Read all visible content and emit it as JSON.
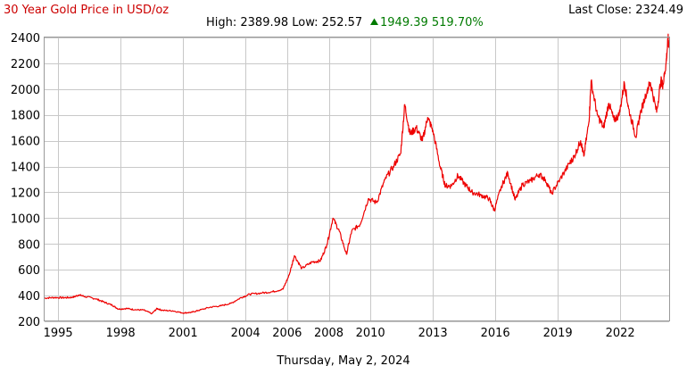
{
  "header": {
    "title": "30 Year Gold Price in USD/oz",
    "last_close_label": "Last Close: 2324.49",
    "high_low_label": "High: 2389.98 Low: 252.57",
    "change_label": "1949.39 519.70%",
    "up_color": "#007a00",
    "title_color": "#cc0000"
  },
  "footer": {
    "date": "Thursday, May 2, 2024"
  },
  "chart_data": {
    "type": "line",
    "title": "30 Year Gold Price in USD/oz",
    "xlabel": "",
    "ylabel": "",
    "xlim": [
      1994.35,
      2024.35
    ],
    "ylim": [
      200,
      2400
    ],
    "yticks": [
      200,
      400,
      600,
      800,
      1000,
      1200,
      1400,
      1600,
      1800,
      2000,
      2200,
      2400
    ],
    "xticks": [
      {
        "value": 1995,
        "label": "1995"
      },
      {
        "value": 1998,
        "label": "1998"
      },
      {
        "value": 2001,
        "label": "2001"
      },
      {
        "value": 2004,
        "label": "2004"
      },
      {
        "value": 2006,
        "label": "2006"
      },
      {
        "value": 2008,
        "label": "2008"
      },
      {
        "value": 2010,
        "label": "2010"
      },
      {
        "value": 2013,
        "label": "2013"
      },
      {
        "value": 2016,
        "label": "2016"
      },
      {
        "value": 2019,
        "label": "2019"
      },
      {
        "value": 2022,
        "label": "2022"
      }
    ],
    "grid": true,
    "line_color": "#ee0000",
    "series": [
      {
        "name": "",
        "points": [
          [
            1994.35,
            380
          ],
          [
            1994.8,
            385
          ],
          [
            1995.3,
            383
          ],
          [
            1995.7,
            386
          ],
          [
            1996.0,
            405
          ],
          [
            1996.3,
            392
          ],
          [
            1996.8,
            375
          ],
          [
            1997.2,
            350
          ],
          [
            1997.6,
            325
          ],
          [
            1997.9,
            295
          ],
          [
            1998.3,
            300
          ],
          [
            1998.7,
            290
          ],
          [
            1999.1,
            288
          ],
          [
            1999.5,
            260
          ],
          [
            1999.75,
            300
          ],
          [
            2000.0,
            285
          ],
          [
            2000.5,
            282
          ],
          [
            2001.0,
            265
          ],
          [
            2001.4,
            270
          ],
          [
            2001.75,
            285
          ],
          [
            2002.3,
            310
          ],
          [
            2002.8,
            320
          ],
          [
            2003.3,
            340
          ],
          [
            2003.8,
            385
          ],
          [
            2004.2,
            410
          ],
          [
            2004.8,
            420
          ],
          [
            2005.3,
            430
          ],
          [
            2005.8,
            450
          ],
          [
            2006.1,
            560
          ],
          [
            2006.35,
            710
          ],
          [
            2006.7,
            610
          ],
          [
            2007.2,
            660
          ],
          [
            2007.6,
            670
          ],
          [
            2007.9,
            790
          ],
          [
            2008.2,
            1000
          ],
          [
            2008.5,
            900
          ],
          [
            2008.85,
            720
          ],
          [
            2009.1,
            900
          ],
          [
            2009.5,
            950
          ],
          [
            2009.9,
            1150
          ],
          [
            2010.3,
            1120
          ],
          [
            2010.7,
            1300
          ],
          [
            2011.1,
            1400
          ],
          [
            2011.45,
            1500
          ],
          [
            2011.65,
            1880
          ],
          [
            2011.9,
            1650
          ],
          [
            2012.2,
            1700
          ],
          [
            2012.5,
            1600
          ],
          [
            2012.75,
            1780
          ],
          [
            2013.0,
            1680
          ],
          [
            2013.35,
            1400
          ],
          [
            2013.6,
            1250
          ],
          [
            2013.9,
            1250
          ],
          [
            2014.2,
            1330
          ],
          [
            2014.6,
            1250
          ],
          [
            2014.9,
            1200
          ],
          [
            2015.3,
            1180
          ],
          [
            2015.7,
            1150
          ],
          [
            2015.95,
            1060
          ],
          [
            2016.3,
            1250
          ],
          [
            2016.6,
            1350
          ],
          [
            2016.95,
            1140
          ],
          [
            2017.3,
            1260
          ],
          [
            2017.7,
            1290
          ],
          [
            2018.1,
            1340
          ],
          [
            2018.4,
            1300
          ],
          [
            2018.7,
            1190
          ],
          [
            2019.1,
            1300
          ],
          [
            2019.55,
            1420
          ],
          [
            2019.8,
            1480
          ],
          [
            2020.1,
            1600
          ],
          [
            2020.25,
            1480
          ],
          [
            2020.5,
            1750
          ],
          [
            2020.6,
            2060
          ],
          [
            2020.9,
            1800
          ],
          [
            2021.2,
            1700
          ],
          [
            2021.45,
            1890
          ],
          [
            2021.7,
            1760
          ],
          [
            2021.95,
            1800
          ],
          [
            2022.2,
            2050
          ],
          [
            2022.4,
            1850
          ],
          [
            2022.75,
            1630
          ],
          [
            2022.95,
            1800
          ],
          [
            2023.3,
            2000
          ],
          [
            2023.45,
            2050
          ],
          [
            2023.75,
            1820
          ],
          [
            2023.95,
            2070
          ],
          [
            2024.05,
            2030
          ],
          [
            2024.2,
            2200
          ],
          [
            2024.3,
            2390
          ],
          [
            2024.35,
            2324
          ]
        ]
      }
    ]
  }
}
